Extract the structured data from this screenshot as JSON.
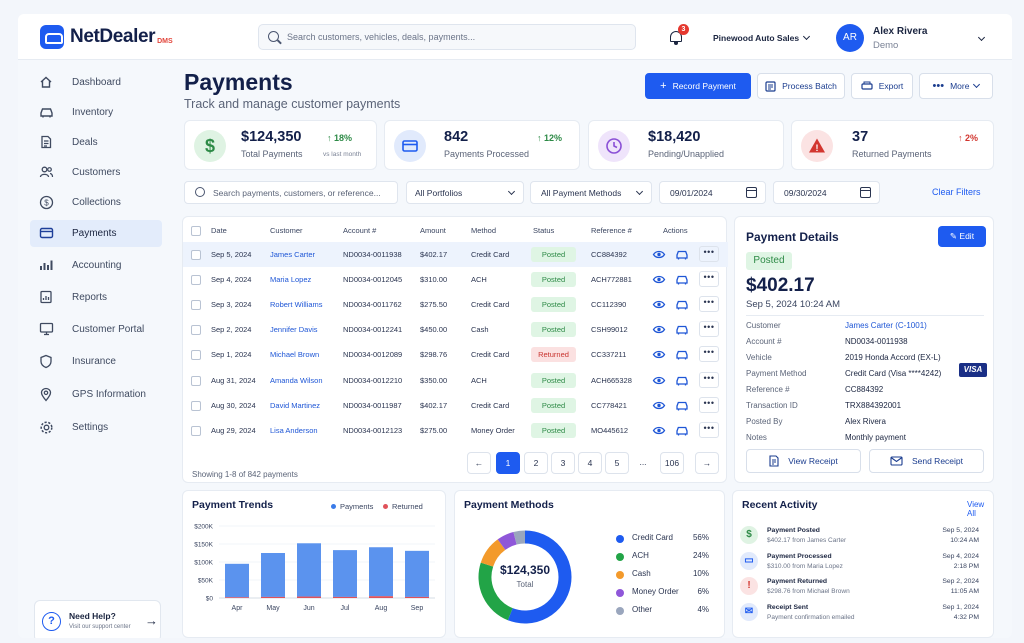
{
  "app": {
    "logo_text": "NetDealer",
    "logo_sub": "DMS"
  },
  "search": {
    "placeholder": "Search customers, vehicles, deals, payments..."
  },
  "notifications": {
    "count": "3"
  },
  "dealer": {
    "name": "Pinewood Auto Sales"
  },
  "user": {
    "initials": "AR",
    "name": "Alex Rivera",
    "role": "Demo"
  },
  "sidebar": {
    "items": [
      {
        "label": "Dashboard",
        "icon": "home-icon"
      },
      {
        "label": "Inventory",
        "icon": "car-icon"
      },
      {
        "label": "Deals",
        "icon": "document-icon"
      },
      {
        "label": "Customers",
        "icon": "users-icon"
      },
      {
        "label": "Collections",
        "icon": "dollar-circle-icon"
      },
      {
        "label": "Payments",
        "icon": "credit-card-icon",
        "active": true
      },
      {
        "label": "Accounting",
        "icon": "bar-chart-icon"
      },
      {
        "label": "Reports",
        "icon": "report-icon"
      },
      {
        "label": "Customer Portal",
        "icon": "monitor-icon"
      },
      {
        "label": "Insurance",
        "icon": "shield-icon"
      },
      {
        "label": "GPS Information",
        "icon": "map-pin-icon"
      },
      {
        "label": "Settings",
        "icon": "gear-icon"
      }
    ],
    "help": {
      "title": "Need Help?",
      "sub": "Visit our support center"
    }
  },
  "page": {
    "title": "Payments",
    "subtitle": "Track and manage customer payments"
  },
  "actions": {
    "record": "Record Payment",
    "batch": "Process Batch",
    "export": "Export",
    "more": "More"
  },
  "kpis": [
    {
      "value": "$124,350",
      "label": "Total Payments",
      "change": "↑ 18%",
      "sub": "vs last month",
      "color": "#2d8a46"
    },
    {
      "value": "842",
      "label": "Payments Processed",
      "change": "↑ 12%",
      "sub": "",
      "color": "#2d8a46"
    },
    {
      "value": "$18,420",
      "label": "Pending/Unapplied",
      "change": "",
      "sub": "",
      "color": "#8a4fd6"
    },
    {
      "value": "37",
      "label": "Returned Payments",
      "change": "↑ 2%",
      "sub": "",
      "color": "#d2362f"
    }
  ],
  "filters": {
    "search_placeholder": "Search payments, customers, or reference...",
    "portfolio": "All Portfolios",
    "method": "All Payment Methods",
    "date_from": "09/01/2024",
    "date_to": "09/30/2024",
    "clear": "Clear Filters"
  },
  "table": {
    "headers": {
      "date": "Date",
      "customer": "Customer",
      "account": "Account #",
      "amount": "Amount",
      "method": "Method",
      "status": "Status",
      "reference": "Reference #",
      "actions": "Actions"
    },
    "rows": [
      {
        "date": "Sep 5, 2024",
        "customer": "James Carter",
        "account": "ND0034-0011938",
        "amount": "$402.17",
        "method": "Credit Card",
        "status": "Posted",
        "reference": "CC884392"
      },
      {
        "date": "Sep 4, 2024",
        "customer": "Maria Lopez",
        "account": "ND0034-0012045",
        "amount": "$310.00",
        "method": "ACH",
        "status": "Posted",
        "reference": "ACH772881"
      },
      {
        "date": "Sep 3, 2024",
        "customer": "Robert Williams",
        "account": "ND0034-0011762",
        "amount": "$275.50",
        "method": "Credit Card",
        "status": "Posted",
        "reference": "CC112390"
      },
      {
        "date": "Sep 2, 2024",
        "customer": "Jennifer Davis",
        "account": "ND0034-0012241",
        "amount": "$450.00",
        "method": "Cash",
        "status": "Posted",
        "reference": "CSH99012"
      },
      {
        "date": "Sep 1, 2024",
        "customer": "Michael Brown",
        "account": "ND0034-0012089",
        "amount": "$298.76",
        "method": "Credit Card",
        "status": "Returned",
        "reference": "CC337211"
      },
      {
        "date": "Aug 31, 2024",
        "customer": "Amanda Wilson",
        "account": "ND0034-0012210",
        "amount": "$350.00",
        "method": "ACH",
        "status": "Posted",
        "reference": "ACH665328"
      },
      {
        "date": "Aug 30, 2024",
        "customer": "David Martinez",
        "account": "ND0034-0011987",
        "amount": "$402.17",
        "method": "Credit Card",
        "status": "Posted",
        "reference": "CC778421"
      },
      {
        "date": "Aug 29, 2024",
        "customer": "Lisa Anderson",
        "account": "ND0034-0012123",
        "amount": "$275.00",
        "method": "Money Order",
        "status": "Posted",
        "reference": "MO445612"
      }
    ],
    "showing": "Showing 1-8 of 842 payments",
    "pages": [
      "←",
      "1",
      "2",
      "3",
      "4",
      "5",
      "...",
      "106",
      "→"
    ],
    "current_page": "1"
  },
  "details": {
    "title": "Payment Details",
    "edit": "Edit",
    "status": "Posted",
    "amount": "$402.17",
    "datetime": "Sep 5, 2024   10:24 AM",
    "fields": [
      {
        "label": "Customer",
        "value": "James Carter (C-1001)",
        "link": true
      },
      {
        "label": "Account #",
        "value": "ND0034-0011938"
      },
      {
        "label": "Vehicle",
        "value": "2019 Honda Accord (EX-L)"
      },
      {
        "label": "Payment Method",
        "value": "Credit Card (Visa ****4242)"
      },
      {
        "label": "Reference #",
        "value": "CC884392"
      },
      {
        "label": "Transaction ID",
        "value": "TRX884392001"
      },
      {
        "label": "Posted By",
        "value": "Alex Rivera"
      },
      {
        "label": "Notes",
        "value": "Monthly payment"
      }
    ],
    "card_brand": "VISA",
    "view_receipt": "View Receipt",
    "send_receipt": "Send Receipt"
  },
  "trends": {
    "title": "Payment Trends",
    "legend": [
      {
        "name": "Payments",
        "color": "#3a7be8"
      },
      {
        "name": "Returned",
        "color": "#e0525a"
      }
    ]
  },
  "methods": {
    "title": "Payment Methods",
    "center_value": "$124,350",
    "center_label": "Total",
    "items": [
      {
        "label": "Credit Card",
        "pct": "56%",
        "value": 56,
        "color": "#1e5bf0"
      },
      {
        "label": "ACH",
        "pct": "24%",
        "value": 24,
        "color": "#22a447"
      },
      {
        "label": "Cash",
        "pct": "10%",
        "value": 10,
        "color": "#f39a2b"
      },
      {
        "label": "Money Order",
        "pct": "6%",
        "value": 6,
        "color": "#8f57d9"
      },
      {
        "label": "Other",
        "pct": "4%",
        "value": 4,
        "color": "#9aa6bd"
      }
    ]
  },
  "activity": {
    "title": "Recent Activity",
    "view_all": "View All",
    "items": [
      {
        "title": "Payment Posted",
        "sub": "$402.17 from James Carter",
        "date": "Sep 5, 2024",
        "time": "10:24 AM",
        "icon": "dollar-icon",
        "color": "#2d8a46"
      },
      {
        "title": "Payment Processed",
        "sub": "$310.00 from Maria Lopez",
        "date": "Sep 4, 2024",
        "time": "2:18 PM",
        "icon": "credit-card-icon",
        "color": "#1e5bf0"
      },
      {
        "title": "Payment Returned",
        "sub": "$298.76 from Michael Brown",
        "date": "Sep 2, 2024",
        "time": "11:05 AM",
        "icon": "warning-icon",
        "color": "#d2362f"
      },
      {
        "title": "Receipt Sent",
        "sub": "Payment confirmation emailed",
        "date": "Sep 1, 2024",
        "time": "4:32 PM",
        "icon": "mail-icon",
        "color": "#1e5bf0"
      }
    ]
  },
  "chart_data": {
    "type": "bar",
    "categories": [
      "Apr",
      "May",
      "Jun",
      "Jul",
      "Aug",
      "Sep"
    ],
    "series": [
      {
        "name": "Payments",
        "values": [
          93,
          122,
          148,
          130,
          136,
          128
        ]
      },
      {
        "name": "Returned",
        "values": [
          2,
          3,
          4,
          3,
          5,
          3
        ]
      }
    ],
    "stacked": true,
    "ylim": [
      0,
      200
    ],
    "yticks": [
      "$200K",
      "$150K",
      "$100K",
      "$50K",
      "$0"
    ],
    "legend": "top-right"
  }
}
